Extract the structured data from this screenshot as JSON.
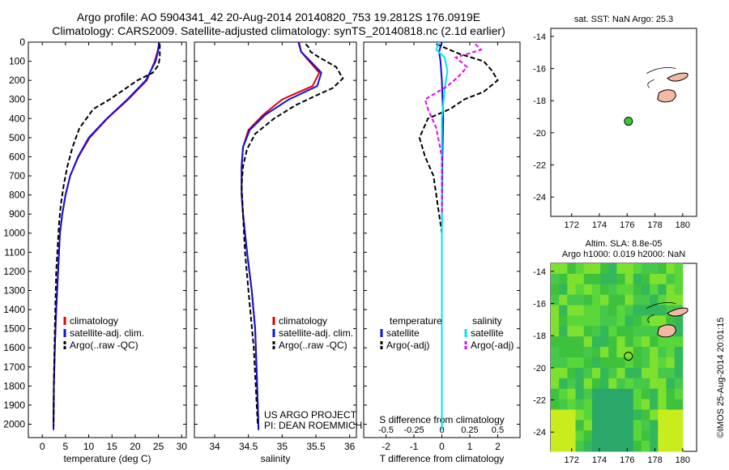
{
  "header": {
    "line1": "Argo profile: AO 5904341_42 20-Aug-2014 20140820_753 19.2812S 176.0919E",
    "line2": "Climatology: CARS2009. Satellite-adjusted climatology: synTS_20140818.nc (2.1d earlier)"
  },
  "side_label": "©IMOS 25-Aug-2014 20:01:15",
  "colors": {
    "climatology": "#e00000",
    "satellite": "#1010e0",
    "argo": "#000000",
    "sal_satellite": "#00e5ee",
    "sal_argo": "#ee00ee",
    "land": "#f5b8a5",
    "argo_marker": "#33cc33"
  },
  "chart_data": [
    {
      "id": "temperature",
      "type": "line",
      "xlabel": "temperature (deg C)",
      "ylabel": "",
      "xlim": [
        -3,
        31
      ],
      "ylim": [
        2070,
        0
      ],
      "xticks": [
        0,
        5,
        10,
        15,
        20,
        25,
        30
      ],
      "yticks": [
        0,
        100,
        200,
        300,
        400,
        500,
        600,
        700,
        800,
        900,
        1000,
        1100,
        1200,
        1300,
        1400,
        1500,
        1600,
        1700,
        1800,
        1900,
        2000
      ],
      "legend": [
        "climatology",
        "satellite-adj. clim.",
        "Argo(..raw -QC)"
      ],
      "series": [
        {
          "name": "climatology",
          "x": [
            25.2,
            24.8,
            24.2,
            22.5,
            18.5,
            14.0,
            10.2,
            7.8,
            6.0,
            5.0,
            4.3,
            3.8,
            3.4,
            3.0,
            2.7,
            2.5,
            2.4
          ],
          "y": [
            0,
            50,
            100,
            200,
            300,
            400,
            500,
            600,
            700,
            800,
            900,
            1000,
            1200,
            1400,
            1600,
            1800,
            2030
          ]
        },
        {
          "name": "satellite-adj. clim.",
          "x": [
            25.2,
            24.9,
            24.4,
            22.3,
            18.3,
            13.9,
            10.0,
            7.7,
            6.0,
            5.0,
            4.3,
            3.8,
            3.4,
            3.0,
            2.7,
            2.5,
            2.4
          ],
          "y": [
            0,
            50,
            100,
            200,
            300,
            400,
            500,
            600,
            700,
            800,
            900,
            1000,
            1200,
            1400,
            1600,
            1800,
            2030
          ]
        },
        {
          "name": "Argo(..raw -QC)",
          "x": [
            25.3,
            25.3,
            25.3,
            25.0,
            23.8,
            20.5,
            17.5,
            14.5,
            11.0,
            8.0,
            6.5,
            5.4,
            4.6,
            4.0,
            3.6,
            3.0,
            2.7,
            2.5,
            2.4
          ],
          "y": [
            10,
            40,
            80,
            120,
            160,
            200,
            250,
            300,
            350,
            450,
            550,
            650,
            750,
            850,
            950,
            1200,
            1500,
            1800,
            2010
          ]
        }
      ]
    },
    {
      "id": "salinity",
      "type": "line",
      "xlabel": "salinity",
      "ylabel": "",
      "xlim": [
        33.7,
        36.1
      ],
      "ylim": [
        2070,
        0
      ],
      "xticks": [
        34,
        34.5,
        35,
        35.5,
        36
      ],
      "legend": [
        "climatology",
        "satellite-adj. clim.",
        "Argo(..raw -QC)"
      ],
      "annotations": [
        "US ARGO PROJECT",
        "PI: DEAN ROEMMICH"
      ],
      "series": [
        {
          "name": "climatology",
          "x": [
            35.25,
            35.28,
            35.4,
            35.55,
            35.45,
            35.0,
            34.72,
            34.5,
            34.42,
            34.4,
            34.4,
            34.42,
            34.48,
            34.55,
            34.6,
            34.63,
            34.65
          ],
          "y": [
            0,
            50,
            100,
            160,
            230,
            300,
            380,
            460,
            550,
            650,
            800,
            900,
            1100,
            1300,
            1500,
            1800,
            2030
          ]
        },
        {
          "name": "satellite-adj. clim.",
          "x": [
            35.24,
            35.28,
            35.42,
            35.58,
            35.52,
            35.1,
            34.75,
            34.52,
            34.42,
            34.4,
            34.4,
            34.42,
            34.48,
            34.55,
            34.6,
            34.63,
            34.65
          ],
          "y": [
            0,
            50,
            100,
            160,
            230,
            300,
            380,
            460,
            550,
            650,
            800,
            900,
            1100,
            1300,
            1500,
            1800,
            2030
          ]
        },
        {
          "name": "Argo(..raw -QC)",
          "x": [
            35.35,
            35.4,
            35.42,
            35.55,
            35.8,
            35.9,
            35.75,
            35.5,
            35.2,
            34.88,
            34.6,
            34.48,
            34.42,
            34.4,
            34.42,
            34.45,
            34.5,
            34.58,
            34.64
          ],
          "y": [
            10,
            30,
            50,
            80,
            130,
            190,
            240,
            280,
            330,
            400,
            480,
            560,
            650,
            750,
            900,
            1100,
            1300,
            1600,
            2010
          ]
        }
      ]
    },
    {
      "id": "difference",
      "type": "line",
      "xlabel": "T difference from climatology",
      "xlabel2": "S difference from climatology",
      "xlim": [
        -2.8,
        2.8
      ],
      "ylim": [
        2070,
        0
      ],
      "xticks": [
        -2,
        -1,
        0,
        1,
        2
      ],
      "xtick_labels_top": [
        "-0.5",
        "-0.25",
        "0",
        "0.25",
        "0.5"
      ],
      "xticks_top": [
        -2,
        -1,
        0,
        1,
        2
      ],
      "legend_titles": [
        "temperature",
        "salinity"
      ],
      "legend": [
        "satellite",
        "Argo(-adj)",
        "satellite",
        "Argo(-adj)"
      ],
      "series": [
        {
          "name": "temperature satellite",
          "x": [
            0.0,
            -0.1,
            -0.05,
            0,
            0.05,
            0.02,
            0,
            0
          ],
          "y": [
            0,
            50,
            100,
            200,
            400,
            600,
            1000,
            2030
          ]
        },
        {
          "name": "temperature Argo(-adj)",
          "x": [
            -0.2,
            0.6,
            1.5,
            1.8,
            2.0,
            1.5,
            0.8,
            0.3,
            -0.5,
            -0.8,
            -0.6,
            -0.3,
            -0.2,
            0,
            0,
            0
          ],
          "y": [
            10,
            60,
            100,
            150,
            200,
            260,
            300,
            350,
            400,
            500,
            600,
            700,
            800,
            1000,
            1500,
            2010
          ]
        },
        {
          "name": "salinity satellite",
          "x": [
            -0.1,
            -0.2,
            0.1,
            0.2,
            0.1,
            0,
            0,
            0,
            0
          ],
          "y": [
            0,
            40,
            80,
            150,
            250,
            400,
            800,
            1400,
            2030
          ]
        },
        {
          "name": "salinity Argo(-adj)",
          "x": [
            1.2,
            1.4,
            0.5,
            0.9,
            0.6,
            0.2,
            -0.6,
            -0.5,
            -0.2,
            0,
            0
          ],
          "y": [
            10,
            40,
            80,
            130,
            180,
            230,
            300,
            350,
            450,
            600,
            900
          ]
        }
      ]
    },
    {
      "id": "sst_map",
      "type": "scatter",
      "title": "sat. SST: NaN Argo: 25.3",
      "xlim": [
        170.5,
        181
      ],
      "ylim": [
        -25.2,
        -13.5
      ],
      "xticks": [
        172,
        174,
        176,
        178,
        180
      ],
      "yticks": [
        -14,
        -16,
        -18,
        -20,
        -22,
        -24
      ],
      "points": [
        {
          "x": 176.09,
          "y": -19.28
        }
      ]
    },
    {
      "id": "sla_map",
      "type": "heatmap",
      "title_line1": "Altim. SLA: 8.8e-05",
      "title_line2": "Argo h1000: 0.019 h2000: NaN",
      "xlim": [
        170.5,
        181
      ],
      "ylim": [
        -25.2,
        -13.5
      ],
      "xticks": [
        172,
        174,
        176,
        178,
        180
      ],
      "yticks": [
        -14,
        -16,
        -18,
        -20,
        -22,
        -24
      ],
      "points": [
        {
          "x": 176.09,
          "y": -19.28
        }
      ]
    }
  ]
}
